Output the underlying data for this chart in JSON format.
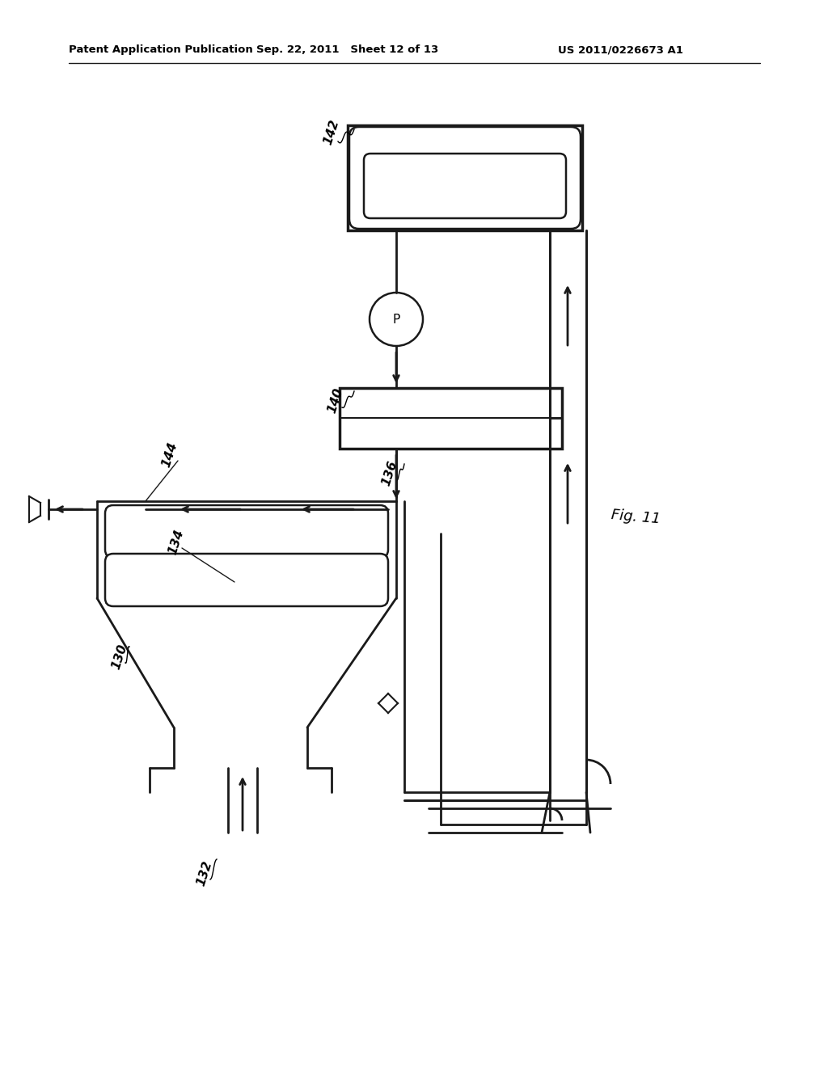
{
  "title_left": "Patent Application Publication",
  "title_mid": "Sep. 22, 2011   Sheet 12 of 13",
  "title_right": "US 2011/0226673 A1",
  "fig_label": "Fig. 11",
  "background": "#ffffff",
  "line_color": "#1a1a1a"
}
